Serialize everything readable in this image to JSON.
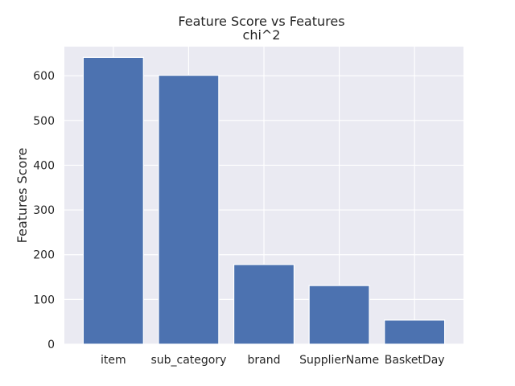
{
  "chart_data": {
    "type": "bar",
    "title": "Feature Score vs Features",
    "subtitle": "chi^2",
    "xlabel": "",
    "ylabel": "Features Score",
    "categories": [
      "item",
      "sub_category",
      "brand",
      "SupplierName",
      "BasketDay"
    ],
    "values": [
      641,
      601,
      178,
      131,
      54
    ],
    "ylim": [
      0,
      665
    ],
    "yticks": [
      "0",
      "100",
      "200",
      "300",
      "400",
      "500",
      "600"
    ],
    "grid": true,
    "bar_color": "#4c72b0",
    "background_color": "#eaeaf2"
  }
}
